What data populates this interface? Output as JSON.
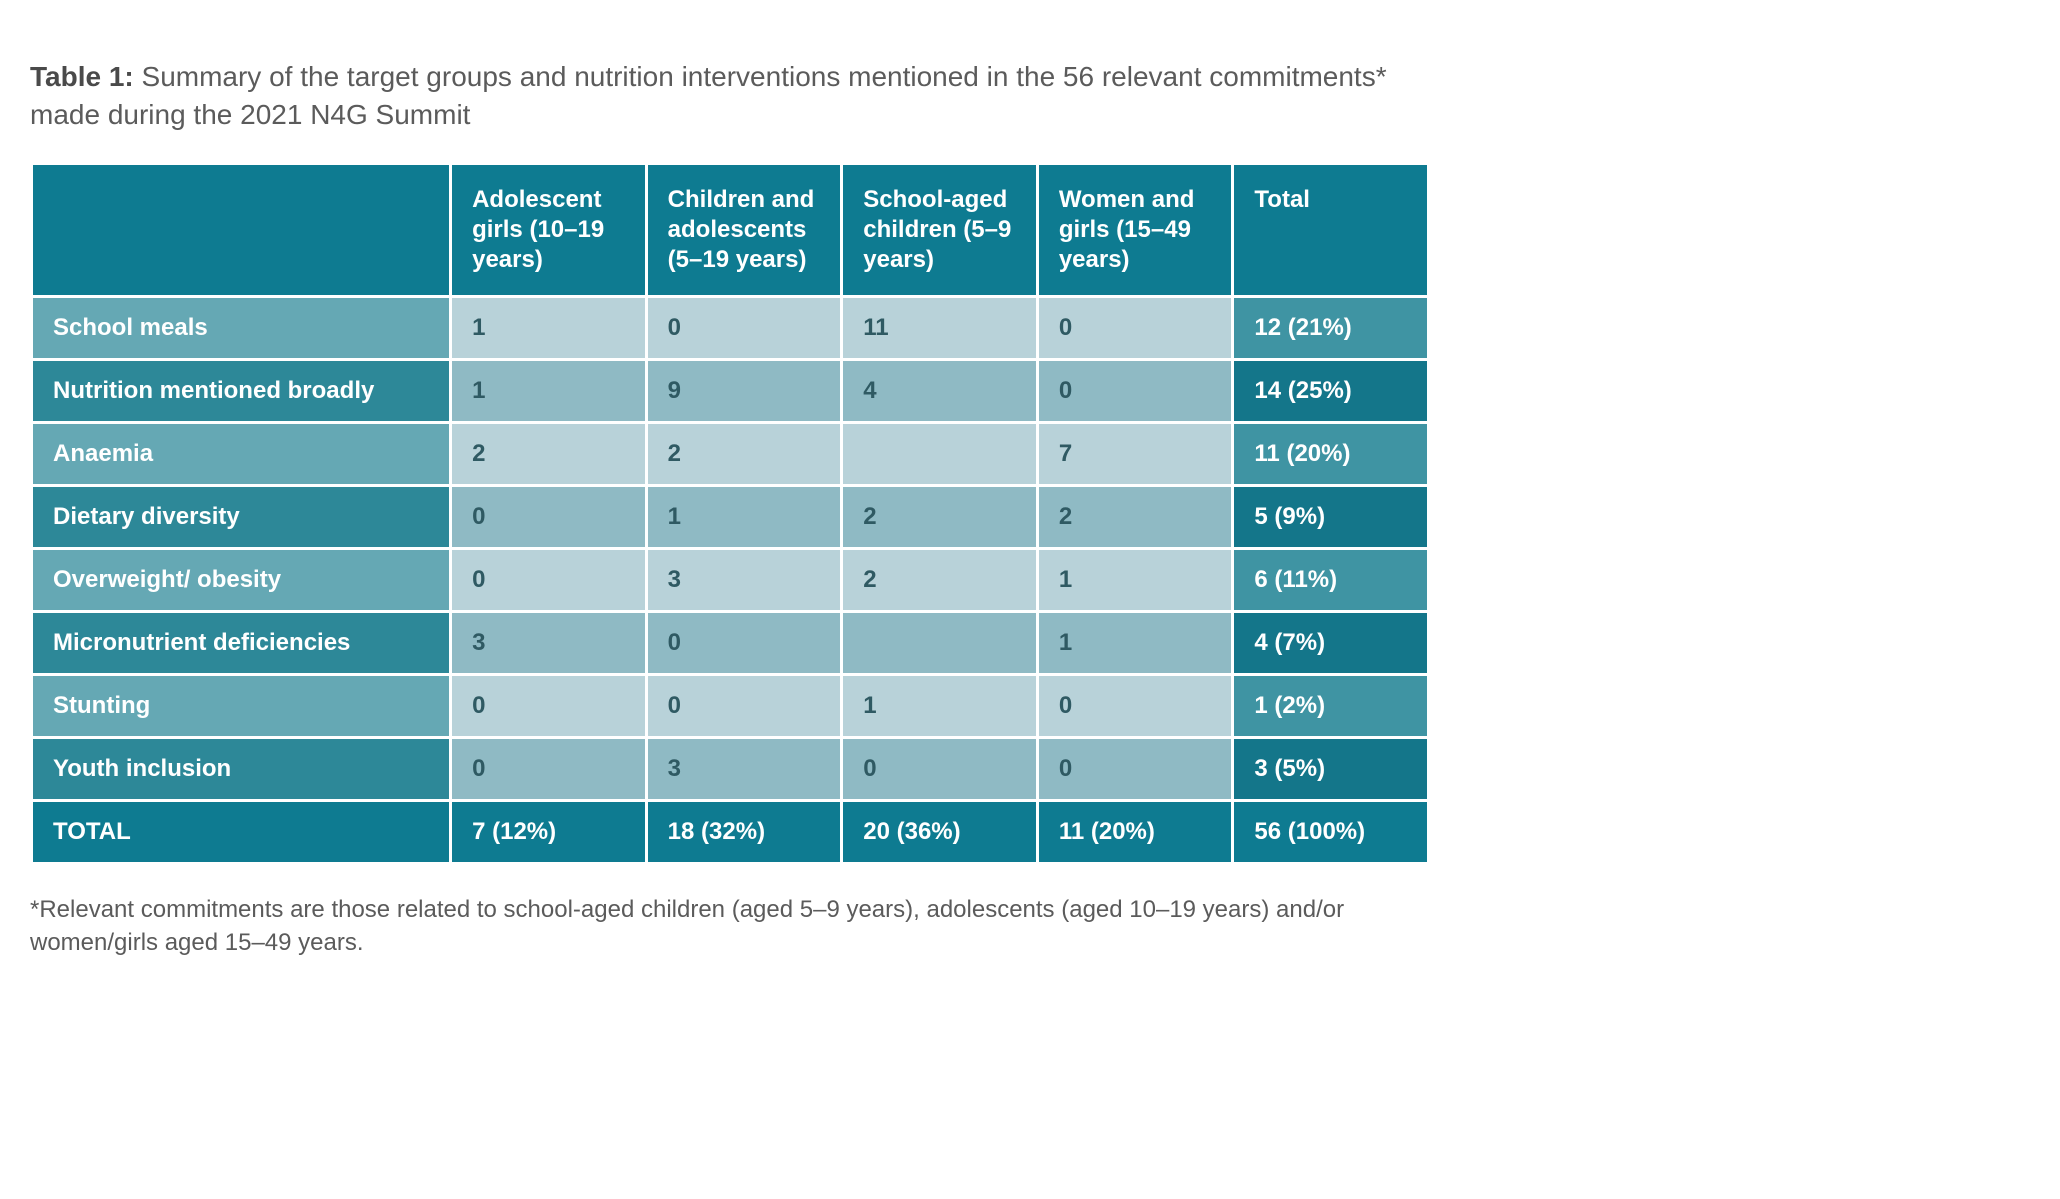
{
  "caption": {
    "label": "Table 1:",
    "text": " Summary of the target groups and nutrition interventions mentioned in the 56 relevant commitments* made during the 2021 N4G Summit"
  },
  "colors": {
    "header_bg": "#0e7b91",
    "header_fg": "#ffffff",
    "rowlabel_odd": "#65a8b4",
    "rowlabel_even": "#2d8898",
    "cell_odd": "#b8d2d9",
    "cell_even": "#8fbac4",
    "total_odd": "#3f94a3",
    "total_even": "#14768a",
    "cell_fg": "#2f5a63",
    "caption_fg": "#5b5b5b"
  },
  "table": {
    "columns": [
      "Adolescent girls (10–19 years)",
      "Children and adolescents (5–19 years)",
      "School-aged children (5–9 years)",
      "Women and girls (15–49 years)",
      "Total"
    ],
    "rows": [
      {
        "label": "School meals",
        "cells": [
          "1",
          "0",
          "11",
          "0"
        ],
        "total": "12 (21%)"
      },
      {
        "label": "Nutrition mentioned broadly",
        "cells": [
          "1",
          "9",
          "4",
          "0"
        ],
        "total": "14 (25%)"
      },
      {
        "label": "Anaemia",
        "cells": [
          "2",
          "2",
          "",
          "7"
        ],
        "total": "11 (20%)"
      },
      {
        "label": "Dietary diversity",
        "cells": [
          "0",
          "1",
          "2",
          "2"
        ],
        "total": "5 (9%)"
      },
      {
        "label": "Overweight/ obesity",
        "cells": [
          "0",
          "3",
          "2",
          "1"
        ],
        "total": "6 (11%)"
      },
      {
        "label": "Micronutrient deficiencies",
        "cells": [
          "3",
          "0",
          "",
          "1"
        ],
        "total": "4 (7%)"
      },
      {
        "label": "Stunting",
        "cells": [
          "0",
          "0",
          "1",
          "0"
        ],
        "total": "1 (2%)"
      },
      {
        "label": "Youth inclusion",
        "cells": [
          "0",
          "3",
          "0",
          "0"
        ],
        "total": "3 (5%)"
      }
    ],
    "footer": {
      "label": "TOTAL",
      "cells": [
        "7 (12%)",
        "18 (32%)",
        "20 (36%)",
        "11 (20%)",
        "56 (100%)"
      ]
    }
  },
  "footnote": "*Relevant commitments are those related to school-aged children (aged 5–9 years), adolescents (aged 10–19 years) and/or women/girls aged 15–49 years."
}
